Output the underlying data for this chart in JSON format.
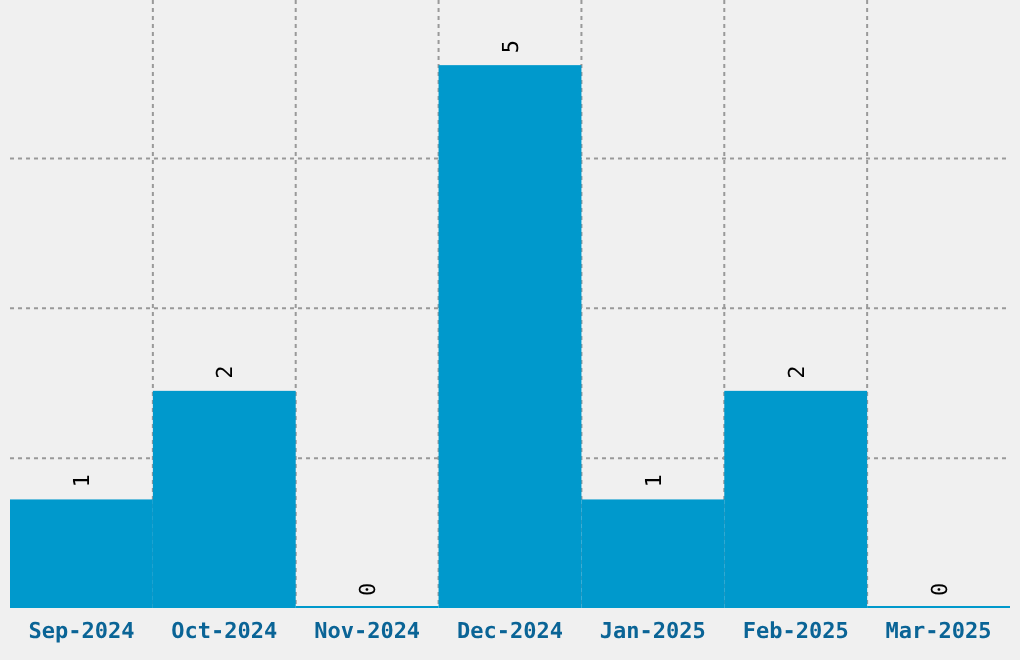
{
  "chart_data": {
    "type": "bar",
    "categories": [
      "Sep-2024",
      "Oct-2024",
      "Nov-2024",
      "Dec-2024",
      "Jan-2025",
      "Feb-2025",
      "Mar-2025"
    ],
    "values": [
      1,
      2,
      0,
      5,
      1,
      2,
      0
    ],
    "color": "#0099cc",
    "ylim": [
      0,
      5.6
    ],
    "yticks": [
      {
        "value": 1.38,
        "label": null
      },
      {
        "value": 2.76,
        "label": null
      },
      {
        "value": 4.14,
        "label": null
      }
    ],
    "grid": true,
    "data_labels": true,
    "tick_labels": "x"
  }
}
